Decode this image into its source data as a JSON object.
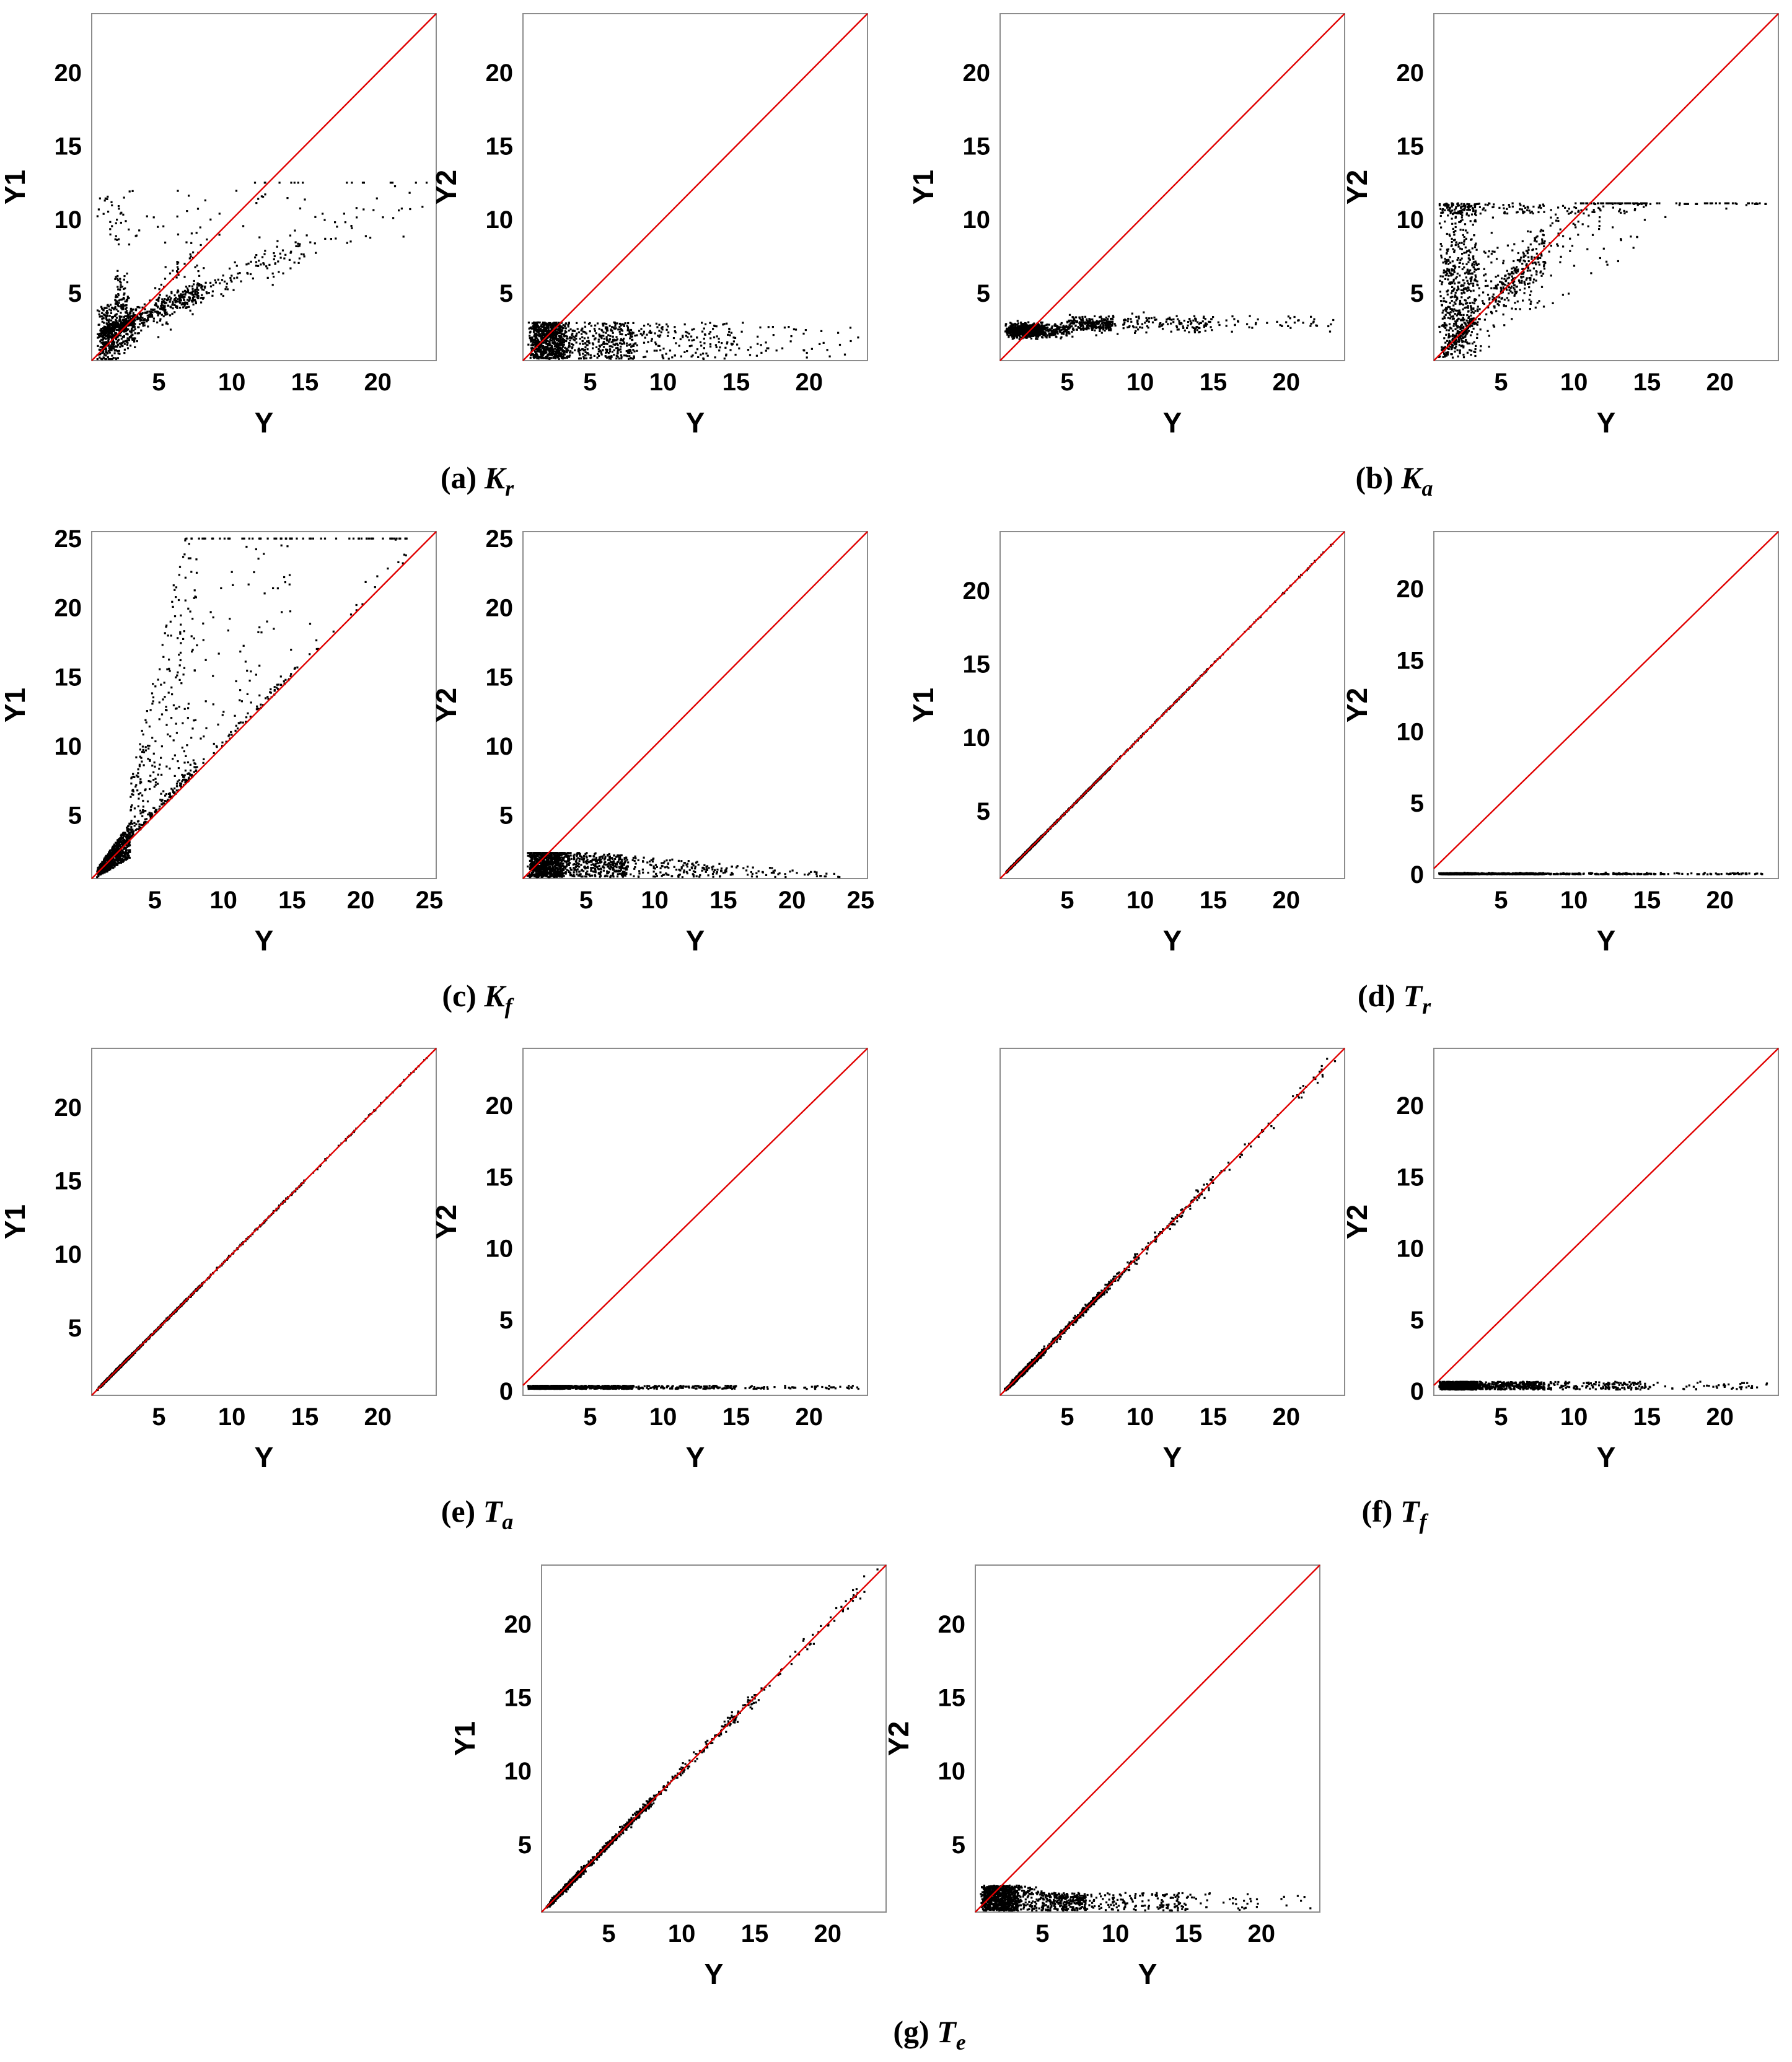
{
  "chart_data": [
    {
      "id": "a-Y1",
      "type": "scatter",
      "panel": "a",
      "xlabel": "Y",
      "ylabel": "Y1",
      "xlim": [
        0.4,
        24
      ],
      "ylim": [
        0.4,
        24
      ],
      "xticks": [
        5,
        10,
        15,
        20
      ],
      "yticks": [
        5,
        10,
        15,
        20
      ],
      "reference_line": "y = x",
      "pattern": "Kr-Y1",
      "n_points": 1300
    },
    {
      "id": "a-Y2",
      "type": "scatter",
      "panel": "a",
      "xlabel": "Y",
      "ylabel": "Y2",
      "xlim": [
        0.4,
        24
      ],
      "ylim": [
        0.4,
        24
      ],
      "xticks": [
        5,
        10,
        15,
        20
      ],
      "yticks": [
        5,
        10,
        15,
        20
      ],
      "reference_line": "y = x",
      "pattern": "Kr-Y2",
      "n_points": 1300
    },
    {
      "id": "b-Y1",
      "type": "scatter",
      "panel": "b",
      "xlabel": "Y",
      "ylabel": "Y1",
      "xlim": [
        0.4,
        24
      ],
      "ylim": [
        0.4,
        24
      ],
      "xticks": [
        5,
        10,
        15,
        20
      ],
      "yticks": [
        5,
        10,
        15,
        20
      ],
      "reference_line": "y = x",
      "pattern": "Ka-Y1",
      "n_points": 1300
    },
    {
      "id": "b-Y2",
      "type": "scatter",
      "panel": "b",
      "xlabel": "Y",
      "ylabel": "Y2",
      "xlim": [
        0.4,
        24
      ],
      "ylim": [
        0.4,
        24
      ],
      "xticks": [
        5,
        10,
        15,
        20
      ],
      "yticks": [
        5,
        10,
        15,
        20
      ],
      "reference_line": "y = x",
      "pattern": "Ka-Y2",
      "n_points": 1300
    },
    {
      "id": "c-Y1",
      "type": "scatter",
      "panel": "c",
      "xlabel": "Y",
      "ylabel": "Y1",
      "xlim": [
        0.4,
        25.5
      ],
      "ylim": [
        0.4,
        25.5
      ],
      "xticks": [
        5,
        10,
        15,
        20,
        25
      ],
      "yticks": [
        5,
        10,
        15,
        20,
        25
      ],
      "reference_line": "y = x",
      "pattern": "Kf-Y1",
      "n_points": 1300
    },
    {
      "id": "c-Y2",
      "type": "scatter",
      "panel": "c",
      "xlabel": "Y",
      "ylabel": "Y2",
      "xlim": [
        0.4,
        25.5
      ],
      "ylim": [
        0.4,
        25.5
      ],
      "xticks": [
        5,
        10,
        15,
        20,
        25
      ],
      "yticks": [
        5,
        10,
        15,
        20,
        25
      ],
      "reference_line": "y = x",
      "pattern": "Kf-Y2",
      "n_points": 1300
    },
    {
      "id": "d-Y1",
      "type": "scatter",
      "panel": "d",
      "xlabel": "Y",
      "ylabel": "Y1",
      "xlim": [
        0.4,
        24
      ],
      "ylim": [
        0.4,
        24
      ],
      "xticks": [
        5,
        10,
        15,
        20
      ],
      "yticks": [
        5,
        10,
        15,
        20
      ],
      "reference_line": "y = x",
      "pattern": "Tr-Y1",
      "n_points": 1300
    },
    {
      "id": "d-Y2",
      "type": "scatter",
      "panel": "d",
      "xlabel": "Y",
      "ylabel": "Y2",
      "xlim": [
        0.4,
        24
      ],
      "ylim": [
        -0.3,
        24
      ],
      "xticks": [
        5,
        10,
        15,
        20
      ],
      "yticks": [
        0,
        5,
        10,
        15,
        20
      ],
      "reference_line": "y = x",
      "pattern": "Tr-Y2",
      "n_points": 1300
    },
    {
      "id": "e-Y1",
      "type": "scatter",
      "panel": "e",
      "xlabel": "Y",
      "ylabel": "Y1",
      "xlim": [
        0.4,
        24
      ],
      "ylim": [
        0.4,
        24
      ],
      "xticks": [
        5,
        10,
        15,
        20
      ],
      "yticks": [
        5,
        10,
        15,
        20
      ],
      "reference_line": "y = x",
      "pattern": "Ta-Y1",
      "n_points": 1300
    },
    {
      "id": "e-Y2",
      "type": "scatter",
      "panel": "e",
      "xlabel": "Y",
      "ylabel": "Y2",
      "xlim": [
        0.4,
        24
      ],
      "ylim": [
        -0.3,
        24
      ],
      "xticks": [
        5,
        10,
        15,
        20
      ],
      "yticks": [
        0,
        5,
        10,
        15,
        20
      ],
      "reference_line": "y = x",
      "pattern": "Ta-Y2",
      "n_points": 1300
    },
    {
      "id": "f-Y1",
      "type": "scatter",
      "panel": "f",
      "xlabel": "Y",
      "ylabel": "",
      "xlim": [
        0.4,
        24
      ],
      "ylim": [
        0.4,
        24
      ],
      "xticks": [
        5,
        10,
        15,
        20
      ],
      "yticks": [],
      "reference_line": "y = x",
      "pattern": "Tf-Y1",
      "n_points": 1300
    },
    {
      "id": "f-Y2",
      "type": "scatter",
      "panel": "f",
      "xlabel": "Y",
      "ylabel": "Y2",
      "xlim": [
        0.4,
        24
      ],
      "ylim": [
        -0.3,
        24
      ],
      "xticks": [
        5,
        10,
        15,
        20
      ],
      "yticks": [
        0,
        5,
        10,
        15,
        20
      ],
      "reference_line": "y = x",
      "pattern": "Tf-Y2",
      "n_points": 1300
    },
    {
      "id": "g-Y1",
      "type": "scatter",
      "panel": "g",
      "xlabel": "Y",
      "ylabel": "Y1",
      "xlim": [
        0.4,
        24
      ],
      "ylim": [
        0.4,
        24
      ],
      "xticks": [
        5,
        10,
        15,
        20
      ],
      "yticks": [
        5,
        10,
        15,
        20
      ],
      "reference_line": "y = x",
      "pattern": "Te-Y1",
      "n_points": 1300
    },
    {
      "id": "g-Y2",
      "type": "scatter",
      "panel": "g",
      "xlabel": "Y",
      "ylabel": "Y2",
      "xlim": [
        0.4,
        24
      ],
      "ylim": [
        0.4,
        24
      ],
      "xticks": [
        5,
        10,
        15,
        20
      ],
      "yticks": [
        5,
        10,
        15,
        20
      ],
      "reference_line": "y = x",
      "pattern": "Te-Y2",
      "n_points": 1300
    }
  ],
  "captions": [
    {
      "id": "a",
      "label": "(a)",
      "symbol": "K",
      "subscript": "r"
    },
    {
      "id": "b",
      "label": "(b)",
      "symbol": "K",
      "subscript": "a"
    },
    {
      "id": "c",
      "label": "(c)",
      "symbol": "K",
      "subscript": "f"
    },
    {
      "id": "d",
      "label": "(d)",
      "symbol": "T",
      "subscript": "r"
    },
    {
      "id": "e",
      "label": "(e)",
      "symbol": "T",
      "subscript": "a"
    },
    {
      "id": "f",
      "label": "(f)",
      "symbol": "T",
      "subscript": "f"
    },
    {
      "id": "g",
      "label": "(g)",
      "symbol": "T",
      "subscript": "e"
    }
  ],
  "colors": {
    "reference_line": "#e00000",
    "points": "#000000",
    "frame": "#8c8c8c"
  }
}
